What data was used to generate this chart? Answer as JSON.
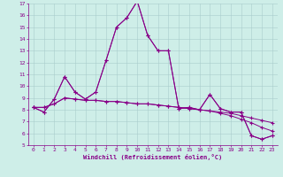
{
  "title": "",
  "xlabel": "Windchill (Refroidissement éolien,°C)",
  "ylabel": "",
  "background_color": "#ceeee8",
  "line_color": "#880088",
  "grid_color": "#aacccc",
  "xlim": [
    -0.5,
    23.5
  ],
  "ylim": [
    5,
    17
  ],
  "xticks": [
    0,
    1,
    2,
    3,
    4,
    5,
    6,
    7,
    8,
    9,
    10,
    11,
    12,
    13,
    14,
    15,
    16,
    17,
    18,
    19,
    20,
    21,
    22,
    23
  ],
  "yticks": [
    5,
    6,
    7,
    8,
    9,
    10,
    11,
    12,
    13,
    14,
    15,
    16,
    17
  ],
  "series": [
    [
      8.2,
      7.8,
      8.9,
      10.8,
      9.5,
      8.9,
      9.5,
      12.2,
      15.0,
      15.8,
      17.2,
      14.3,
      13.0,
      13.0,
      8.1,
      8.2,
      8.0,
      9.3,
      8.1,
      7.8,
      7.8,
      5.8,
      5.5,
      5.8
    ],
    [
      8.2,
      7.8,
      8.9,
      10.8,
      9.5,
      8.9,
      9.5,
      12.2,
      15.0,
      15.8,
      17.2,
      14.3,
      13.0,
      13.0,
      8.1,
      8.2,
      8.0,
      9.3,
      8.1,
      7.8,
      7.8,
      5.8,
      5.5,
      5.8
    ],
    [
      8.2,
      8.2,
      8.5,
      9.0,
      8.9,
      8.8,
      8.8,
      8.7,
      8.7,
      8.6,
      8.5,
      8.5,
      8.4,
      8.3,
      8.2,
      8.1,
      8.0,
      7.9,
      7.8,
      7.7,
      7.5,
      7.3,
      7.1,
      6.9
    ],
    [
      8.2,
      8.2,
      8.5,
      9.0,
      8.9,
      8.8,
      8.8,
      8.7,
      8.7,
      8.6,
      8.5,
      8.5,
      8.4,
      8.3,
      8.2,
      8.1,
      8.0,
      7.9,
      7.7,
      7.5,
      7.2,
      6.9,
      6.5,
      6.2
    ]
  ]
}
